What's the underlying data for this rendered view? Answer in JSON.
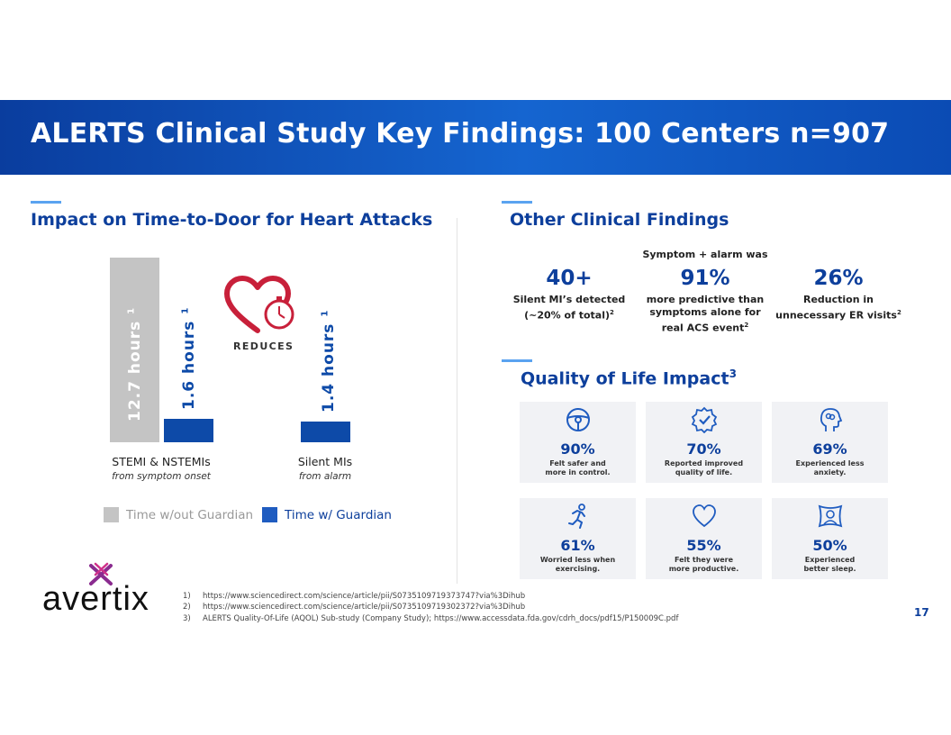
{
  "title": "ALERTS Clinical Study Key Findings: 100 Centers n=907",
  "left": {
    "section_title": "Impact on Time-to-Door for Heart Attacks",
    "reduces_label": "REDUCES",
    "legend": {
      "without": "Time w/out Guardian",
      "with": "Time w/ Guardian"
    },
    "bar_labels": {
      "b1": "12.7 hours",
      "b2": "1.6 hours",
      "b3": "1.4 hours",
      "sup": "1"
    },
    "categories": [
      {
        "name": "STEMI & NSTEMIs",
        "sub": "from symptom onset"
      },
      {
        "name": "Silent MIs",
        "sub": "from alarm"
      }
    ]
  },
  "chart_data": {
    "type": "bar",
    "title": "Impact on Time-to-Door for Heart Attacks",
    "categories": [
      "STEMI & NSTEMIs",
      "Silent MIs"
    ],
    "series": [
      {
        "name": "Time w/out Guardian",
        "values": [
          12.7,
          null
        ],
        "color": "#c4c4c4"
      },
      {
        "name": "Time w/ Guardian",
        "values": [
          1.6,
          1.4
        ],
        "color": "#0d4aa8"
      }
    ],
    "ylabel": "hours",
    "ylim": [
      0,
      12.7
    ]
  },
  "right": {
    "section_title": "Other Clinical Findings",
    "symptom_header": "Symptom + alarm was",
    "stats": [
      {
        "num": "40+",
        "line1": "Silent MI’s detected",
        "line2": "(~20% of total)",
        "sup": "2",
        "line3": ""
      },
      {
        "num": "91%",
        "line1": "more predictive than",
        "line2": "symptoms alone for",
        "line3": "real ACS event",
        "sup": "2"
      },
      {
        "num": "26%",
        "line1": "Reduction in",
        "line2": "unnecessary ER visits",
        "sup": "2",
        "line3": ""
      }
    ],
    "qol_title": "Quality of Life Impact",
    "qol_sup": "3",
    "cards": [
      {
        "icon": "steering-wheel-icon",
        "pct": "90%",
        "l1": "Felt safer and",
        "l2": "more in control."
      },
      {
        "icon": "check-badge-icon",
        "pct": "70%",
        "l1": "Reported improved",
        "l2": "quality of life."
      },
      {
        "icon": "head-brain-icon",
        "pct": "69%",
        "l1": "Experienced less",
        "l2": "anxiety."
      },
      {
        "icon": "runner-icon",
        "pct": "61%",
        "l1": "Worried less when",
        "l2": "exercising."
      },
      {
        "icon": "heart-outline-icon",
        "pct": "55%",
        "l1": "Felt they were",
        "l2": "more productive."
      },
      {
        "icon": "sleep-pillow-icon",
        "pct": "50%",
        "l1": "Experienced",
        "l2": "better sleep."
      }
    ]
  },
  "footnotes": [
    {
      "n": "1)",
      "text": "https://www.sciencedirect.com/science/article/pii/S0735109719373747?via%3Dihub"
    },
    {
      "n": "2)",
      "text": "https://www.sciencedirect.com/science/article/pii/S0735109719302372?via%3Dihub"
    },
    {
      "n": "3)",
      "text": "ALERTS Quality-Of-Life (AQOL) Sub-study (Company Study); https://www.accessdata.fda.gov/cdrh_docs/pdf15/P150009C.pdf"
    }
  ],
  "logo": "avertix",
  "page_number": "17",
  "colors": {
    "brand": "#0d3f9c",
    "gray_bar": "#c4c4c4",
    "blue_bar": "#0d4aa8",
    "heart": "#c8203a",
    "accent": "#5aa3f0"
  }
}
